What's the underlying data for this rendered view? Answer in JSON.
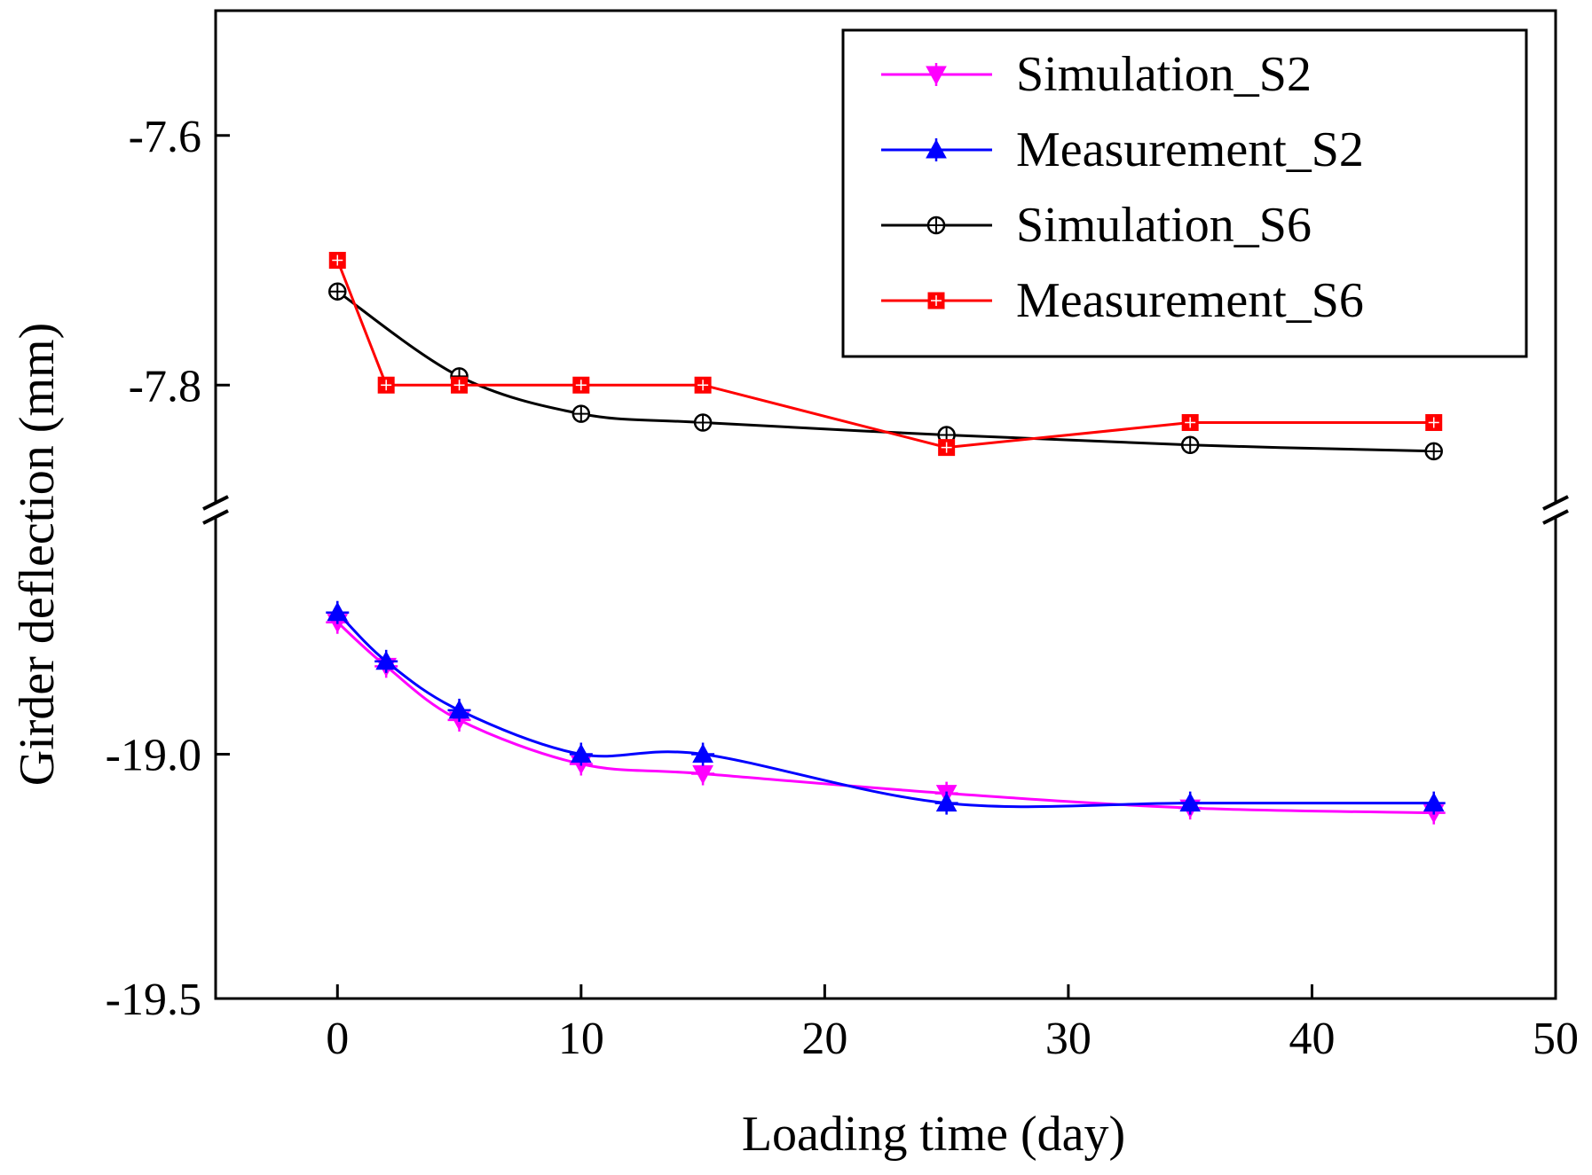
{
  "chart_data": {
    "type": "line",
    "title": "",
    "xlabel": "Loading time (day)",
    "ylabel": "Girder deflection (mm)",
    "xlim": [
      -5,
      50
    ],
    "x_ticks": [
      0,
      10,
      20,
      30,
      40,
      50
    ],
    "x_tick_labels": [
      "0",
      "10",
      "20",
      "30",
      "40",
      "50"
    ],
    "broken_y_axis": true,
    "y_segments": [
      {
        "name": "upper",
        "ylim": [
          -7.9,
          -7.5
        ],
        "ticks": [
          -7.6,
          -7.8
        ],
        "tick_labels": [
          "-7.6",
          "-7.8"
        ]
      },
      {
        "name": "lower",
        "ylim": [
          -19.5,
          -18.5
        ],
        "ticks": [
          -19.0,
          -19.5
        ],
        "tick_labels": [
          "-19.0",
          "-19.5"
        ]
      }
    ],
    "legend_position": "top-right",
    "series": [
      {
        "name": "Simulation_S2",
        "color": "#ff00ff",
        "marker": "triangle-down",
        "segment": "lower",
        "smooth": true,
        "x": [
          0,
          2,
          5,
          10,
          15,
          25,
          35,
          45
        ],
        "y": [
          -18.73,
          -18.82,
          -18.93,
          -19.02,
          -19.04,
          -19.08,
          -19.11,
          -19.12
        ]
      },
      {
        "name": "Measurement_S2",
        "color": "#0000ff",
        "marker": "triangle-up",
        "segment": "lower",
        "smooth": true,
        "x": [
          0,
          2,
          5,
          10,
          15,
          25,
          35,
          45
        ],
        "y": [
          -18.71,
          -18.81,
          -18.91,
          -19.0,
          -19.0,
          -19.1,
          -19.1,
          -19.1
        ]
      },
      {
        "name": "Simulation_S6",
        "color": "#000000",
        "marker": "circle-plus",
        "segment": "upper",
        "smooth": true,
        "x": [
          0,
          5,
          10,
          15,
          25,
          35,
          45
        ],
        "y": [
          -7.725,
          -7.793,
          -7.823,
          -7.83,
          -7.84,
          -7.848,
          -7.853
        ]
      },
      {
        "name": "Measurement_S6",
        "color": "#ff0000",
        "marker": "square",
        "segment": "upper",
        "smooth": false,
        "x": [
          0,
          2,
          5,
          10,
          15,
          25,
          35,
          45
        ],
        "y": [
          -7.7,
          -7.8,
          -7.8,
          -7.8,
          -7.8,
          -7.85,
          -7.83,
          -7.83
        ]
      }
    ]
  }
}
